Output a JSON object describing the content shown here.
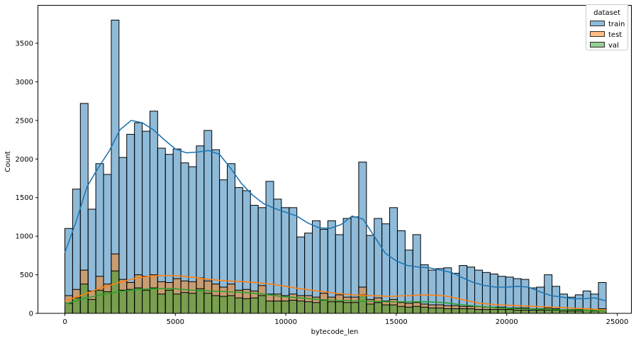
{
  "chart_data": {
    "type": "histogram",
    "title": "",
    "xlabel": "bytecode_len",
    "ylabel": "Count",
    "xlim": [
      -1230,
      25750
    ],
    "ylim": [
      0,
      3990
    ],
    "xticks": [
      0,
      5000,
      10000,
      15000,
      20000,
      25000
    ],
    "xtick_labels": [
      "0",
      "5000",
      "10000",
      "15000",
      "20000",
      "25000"
    ],
    "yticks": [
      0,
      500,
      1000,
      1500,
      2000,
      2500,
      3000,
      3500
    ],
    "ytick_labels": [
      "0",
      "500",
      "1000",
      "1500",
      "2000",
      "2500",
      "3000",
      "3500"
    ],
    "grid": false,
    "legend": {
      "title": "dataset",
      "position": "upper right",
      "entries": [
        "train",
        "test",
        "val"
      ]
    },
    "bin_start": 0,
    "bin_width": 350,
    "series": [
      {
        "name": "train",
        "color": "#1f77b4",
        "values": [
          1100,
          1610,
          2720,
          1350,
          1940,
          1800,
          3800,
          2020,
          2320,
          2470,
          2360,
          2620,
          2140,
          2060,
          2130,
          1950,
          1900,
          2170,
          2370,
          2120,
          1730,
          1940,
          1630,
          1590,
          1400,
          1370,
          1710,
          1480,
          1370,
          1370,
          990,
          1040,
          1200,
          1090,
          1200,
          1020,
          1230,
          1250,
          1960,
          1010,
          1230,
          1160,
          1370,
          1070,
          820,
          1020,
          630,
          560,
          580,
          590,
          520,
          620,
          600,
          560,
          530,
          510,
          480,
          470,
          450,
          440,
          330,
          340,
          500,
          350,
          250,
          210,
          240,
          290,
          250,
          400
        ],
        "kde": [
          790,
          1180,
          1640,
          1880,
          2100,
          2380,
          2500,
          2470,
          2380,
          2250,
          2130,
          2080,
          2090,
          2110,
          2060,
          1880,
          1680,
          1530,
          1420,
          1360,
          1310,
          1260,
          1170,
          1110,
          1100,
          1150,
          1260,
          1220,
          1000,
          780,
          680,
          620,
          600,
          590,
          560,
          530,
          460,
          400,
          360,
          340,
          340,
          350,
          340,
          280,
          230,
          210,
          190,
          190,
          200,
          160
        ]
      },
      {
        "name": "test",
        "color": "#ff7f0e",
        "values": [
          230,
          310,
          560,
          290,
          480,
          380,
          770,
          440,
          400,
          500,
          480,
          500,
          410,
          400,
          450,
          420,
          410,
          460,
          420,
          380,
          340,
          380,
          300,
          310,
          290,
          360,
          250,
          250,
          230,
          250,
          230,
          230,
          210,
          260,
          210,
          240,
          210,
          210,
          340,
          180,
          200,
          160,
          180,
          140,
          130,
          140,
          120,
          110,
          110,
          100,
          100,
          90,
          90,
          90,
          80,
          80,
          80,
          70,
          70,
          70,
          60,
          60,
          70,
          60,
          50,
          50,
          50,
          60,
          50,
          60
        ],
        "kde": [
          160,
          240,
          330,
          400,
          460,
          490,
          490,
          470,
          440,
          420,
          410,
          390,
          360,
          320,
          290,
          260,
          240,
          230,
          220,
          230,
          240,
          230,
          180,
          130,
          110,
          100,
          90,
          80,
          70,
          60,
          40
        ]
      },
      {
        "name": "val",
        "color": "#2ca02c",
        "values": [
          130,
          200,
          380,
          180,
          300,
          280,
          550,
          300,
          310,
          330,
          300,
          330,
          250,
          300,
          250,
          270,
          260,
          320,
          260,
          230,
          220,
          230,
          200,
          190,
          200,
          230,
          160,
          160,
          160,
          170,
          160,
          150,
          140,
          170,
          150,
          150,
          140,
          140,
          240,
          120,
          140,
          110,
          110,
          90,
          80,
          90,
          80,
          70,
          70,
          60,
          60,
          60,
          60,
          50,
          50,
          50,
          50,
          50,
          40,
          40,
          40,
          40,
          40,
          40,
          30,
          30,
          30,
          40,
          30,
          40
        ],
        "kde": [
          120,
          190,
          240,
          280,
          310,
          320,
          320,
          300,
          290,
          280,
          270,
          250,
          220,
          200,
          180,
          170,
          160,
          155,
          150,
          150,
          150,
          140,
          110,
          90,
          70,
          60,
          55,
          50,
          45,
          40,
          30
        ]
      }
    ]
  },
  "colors": {
    "train_fill": "#1f77b4",
    "test_fill": "#ff7f0e",
    "val_fill": "#2ca02c",
    "bar_edge": "#000000",
    "axes": "#000000"
  }
}
